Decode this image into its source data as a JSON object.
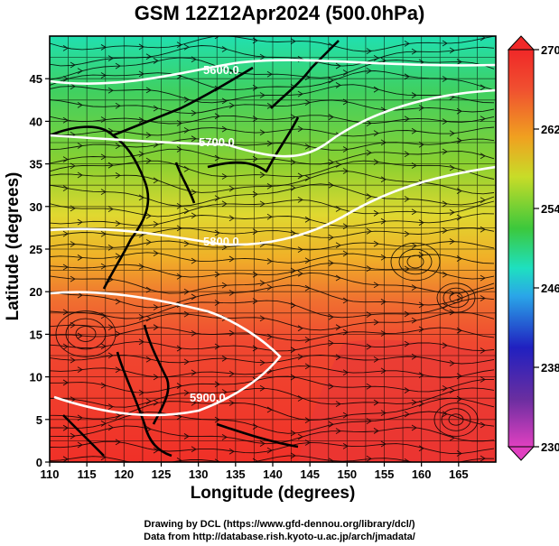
{
  "title": "GSM 12Z12Apr2024 (500.0hPa)",
  "x_axis": {
    "label": "Longitude (degrees)",
    "range": [
      110,
      170
    ],
    "ticks": [
      "110",
      "115",
      "120",
      "125",
      "130",
      "135",
      "140",
      "145",
      "150",
      "155",
      "160",
      "165"
    ]
  },
  "y_axis": {
    "label": "Latitude  (degrees)",
    "range": [
      0,
      50
    ],
    "ticks": [
      "0",
      "5",
      "10",
      "15",
      "20",
      "25",
      "30",
      "35",
      "40",
      "45"
    ]
  },
  "colorbar": {
    "range": [
      230,
      270
    ],
    "ticks": [
      "230",
      "238",
      "246",
      "254",
      "262",
      "270"
    ],
    "colors": [
      "#e040c0",
      "#6a2ea0",
      "#2020c0",
      "#2aa6e8",
      "#1ee0c0",
      "#3cc83c",
      "#c8dc28",
      "#f0a020",
      "#f05030",
      "#f02828"
    ]
  },
  "contours": [
    "5600.0",
    "5700.0",
    "5800.0",
    "5900.0"
  ],
  "credits": {
    "line1": "Drawing by DCL (https://www.gfd-dennou.org/library/dcl/)",
    "line2": "Data from http://database.rish.kyoto-u.ac.jp/arch/jmadata/"
  }
}
